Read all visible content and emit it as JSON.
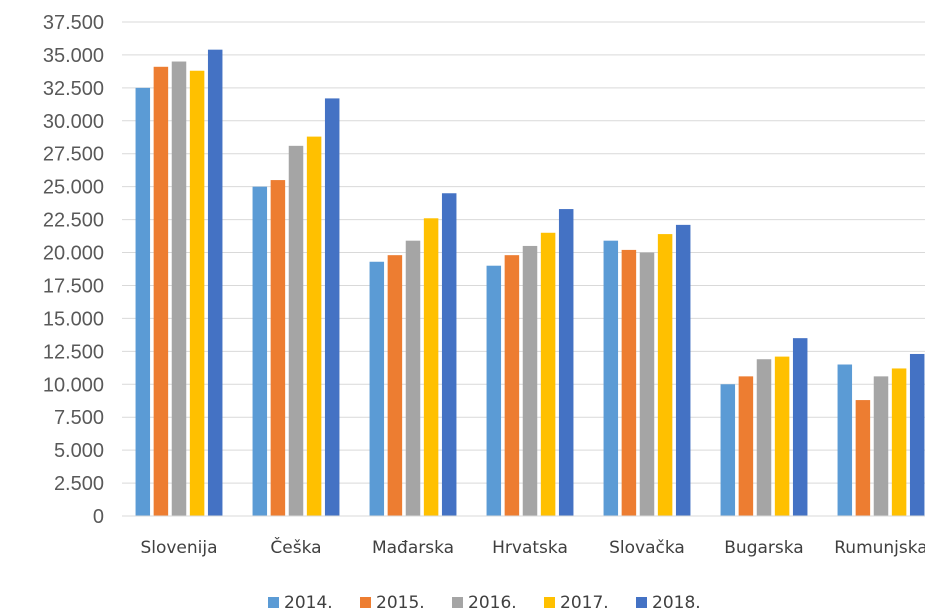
{
  "chart_data": {
    "type": "bar",
    "title": "",
    "xlabel": "",
    "ylabel": "",
    "ylim": [
      0,
      37500
    ],
    "yticks": [
      {
        "value": 0,
        "label": "0"
      },
      {
        "value": 2500,
        "label": "2.500"
      },
      {
        "value": 5000,
        "label": "5.000"
      },
      {
        "value": 7500,
        "label": "7.500"
      },
      {
        "value": 10000,
        "label": "10.000"
      },
      {
        "value": 12500,
        "label": "12.500"
      },
      {
        "value": 15000,
        "label": "15.000"
      },
      {
        "value": 17500,
        "label": "17.500"
      },
      {
        "value": 20000,
        "label": "20.000"
      },
      {
        "value": 22500,
        "label": "22.500"
      },
      {
        "value": 25000,
        "label": "25.000"
      },
      {
        "value": 27500,
        "label": "27.500"
      },
      {
        "value": 30000,
        "label": "30.000"
      },
      {
        "value": 32500,
        "label": "32.500"
      },
      {
        "value": 35000,
        "label": "35.000"
      },
      {
        "value": 37500,
        "label": "37.500"
      }
    ],
    "grid": true,
    "legend_position": "bottom",
    "categories": [
      "Slovenija",
      "Češka",
      "Mađarska",
      "Hrvatska",
      "Slovačka",
      "Bugarska",
      "Rumunjska"
    ],
    "series": [
      {
        "name": "2014.",
        "color": "#5b9bd5",
        "values": [
          32500,
          25000,
          19300,
          19000,
          20900,
          10000,
          11500
        ]
      },
      {
        "name": "2015.",
        "color": "#ed7d31",
        "values": [
          34100,
          25500,
          19800,
          19800,
          20200,
          10600,
          8800
        ]
      },
      {
        "name": "2016.",
        "color": "#a5a5a5",
        "values": [
          34500,
          28100,
          20900,
          20500,
          20000,
          11900,
          10600
        ]
      },
      {
        "name": "2017.",
        "color": "#ffc000",
        "values": [
          33800,
          28800,
          22600,
          21500,
          21400,
          12100,
          11200
        ]
      },
      {
        "name": "2018.",
        "color": "#4472c4",
        "values": [
          35400,
          31700,
          24500,
          23300,
          22100,
          13500,
          12300
        ]
      }
    ]
  }
}
